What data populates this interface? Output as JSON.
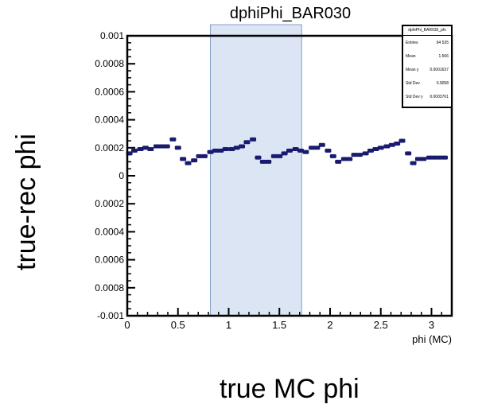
{
  "chart_data": {
    "type": "scatter",
    "title": "dphiPhi_BAR030",
    "xlabel": "phi (MC)",
    "ylabel": "",
    "outer_xlabel": "true MC phi",
    "outer_ylabel": "true-rec phi",
    "xlim": [
      0,
      3.2
    ],
    "ylim": [
      -0.001,
      0.001
    ],
    "x_ticks": [
      {
        "value": 0,
        "label": "0"
      },
      {
        "value": 0.5,
        "label": "0.5"
      },
      {
        "value": 1,
        "label": "1"
      },
      {
        "value": 1.5,
        "label": "1.5"
      },
      {
        "value": 2,
        "label": "2"
      },
      {
        "value": 2.5,
        "label": "2.5"
      },
      {
        "value": 3,
        "label": "3"
      }
    ],
    "y_ticks": [
      {
        "value": 0.001,
        "label": "0.001"
      },
      {
        "value": 0.0008,
        "label": "0.0008"
      },
      {
        "value": 0.0006,
        "label": "0.0006"
      },
      {
        "value": 0.0004,
        "label": "0.0004"
      },
      {
        "value": 0.0002,
        "label": "0.0002"
      },
      {
        "value": 0,
        "label": "0"
      },
      {
        "value": -0.0002,
        "label": "0.0002"
      },
      {
        "value": -0.0004,
        "label": "0.0004"
      },
      {
        "value": -0.0006,
        "label": "0.0006"
      },
      {
        "value": -0.0008,
        "label": "0.0008"
      },
      {
        "value": -0.001,
        "label": "-0.001"
      }
    ],
    "highlight_band": {
      "x_from": 0.82,
      "x_to": 1.72,
      "color": "#dbe5f3",
      "stroke": "#7f9fc8"
    },
    "marker_color": "#1a1a6e",
    "series": [
      {
        "x": [
          0.02,
          0.07,
          0.13,
          0.18,
          0.23,
          0.29,
          0.34,
          0.39,
          0.45,
          0.5,
          0.55,
          0.6,
          0.66,
          0.71,
          0.76,
          0.82,
          0.87,
          0.92,
          0.97,
          1.03,
          1.08,
          1.13,
          1.18,
          1.24,
          1.29,
          1.34,
          1.39,
          1.45,
          1.5,
          1.55,
          1.6,
          1.66,
          1.71,
          1.76,
          1.82,
          1.87,
          1.92,
          1.98,
          2.03,
          2.08,
          2.14,
          2.19,
          2.24,
          2.29,
          2.35,
          2.4,
          2.45,
          2.5,
          2.56,
          2.61,
          2.66,
          2.71,
          2.77,
          2.82,
          2.87,
          2.92,
          2.98,
          3.03,
          3.08,
          3.13
        ],
        "y": [
          0.00016,
          0.00018,
          0.00019,
          0.0002,
          0.00019,
          0.00021,
          0.00021,
          0.00021,
          0.00026,
          0.0002,
          0.00012,
          9e-05,
          0.00011,
          0.00014,
          0.00014,
          0.00017,
          0.00018,
          0.00018,
          0.00019,
          0.00019,
          0.0002,
          0.00021,
          0.00024,
          0.00026,
          0.00013,
          0.0001,
          0.0001,
          0.00014,
          0.00014,
          0.00016,
          0.00018,
          0.00019,
          0.00018,
          0.00017,
          0.0002,
          0.0002,
          0.00022,
          0.00018,
          0.00014,
          0.0001,
          0.00012,
          0.00012,
          0.00015,
          0.00015,
          0.00016,
          0.00018,
          0.00019,
          0.0002,
          0.00021,
          0.00022,
          0.00023,
          0.00025,
          0.00016,
          9e-05,
          0.00012,
          0.00012,
          0.00013,
          0.00013,
          0.00013,
          0.00013
        ]
      }
    ],
    "grid": false,
    "legend": "none",
    "stats_box": {
      "placement": "top-right",
      "title": "dphiPhi_BAR030_pfx",
      "rows": [
        {
          "label": "Entries",
          "value": "64 535"
        },
        {
          "label": "Mean",
          "value": "1.566"
        },
        {
          "label": "Mean y",
          "value": "0.0001637"
        },
        {
          "label": "Std Dev",
          "value": "0.9058"
        },
        {
          "label": "Std Dev y",
          "value": "0.0003761"
        }
      ]
    }
  }
}
